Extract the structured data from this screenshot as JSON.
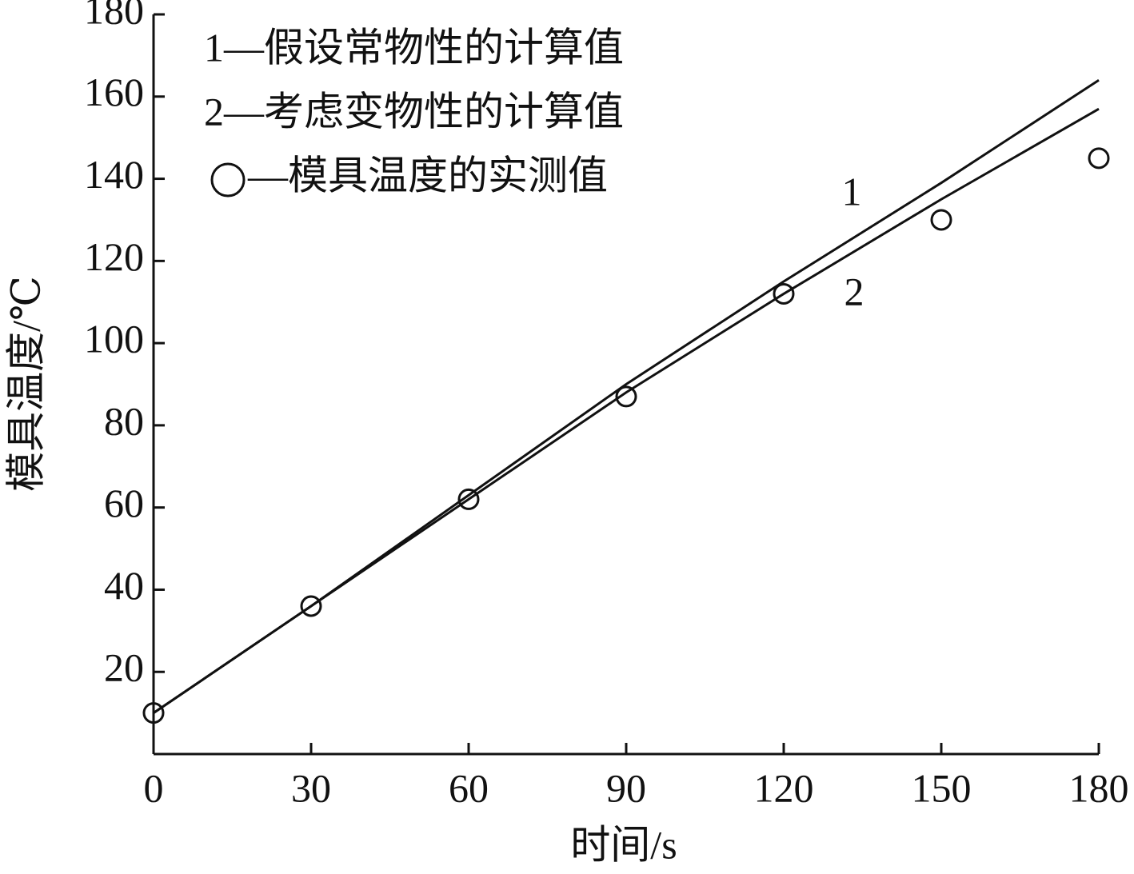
{
  "chart_data": {
    "type": "line",
    "x": [
      0,
      30,
      60,
      90,
      120,
      150,
      180
    ],
    "series": [
      {
        "name": "1—假设常物性的计算值",
        "type": "line",
        "color": "#111111",
        "values": [
          10,
          36,
          63,
          90,
          115,
          139,
          164
        ]
      },
      {
        "name": "2—考虑变物性的计算值",
        "type": "line",
        "color": "#111111",
        "values": [
          10,
          36,
          62,
          88,
          112,
          135,
          157
        ]
      },
      {
        "name": "—模具温度的实测值",
        "type": "scatter",
        "color": "#111111",
        "values": [
          10,
          36,
          62,
          87,
          112,
          130,
          145
        ]
      }
    ],
    "curve_labels": [
      "1",
      "2"
    ],
    "xlabel": "时间/s",
    "ylabel": "模具温度/℃",
    "xlim": [
      0,
      180
    ],
    "xticks": [
      0,
      30,
      60,
      90,
      120,
      150,
      180
    ],
    "ylim": [
      0,
      180
    ],
    "yticks": [
      20,
      40,
      60,
      80,
      100,
      120,
      140,
      160,
      180
    ]
  }
}
